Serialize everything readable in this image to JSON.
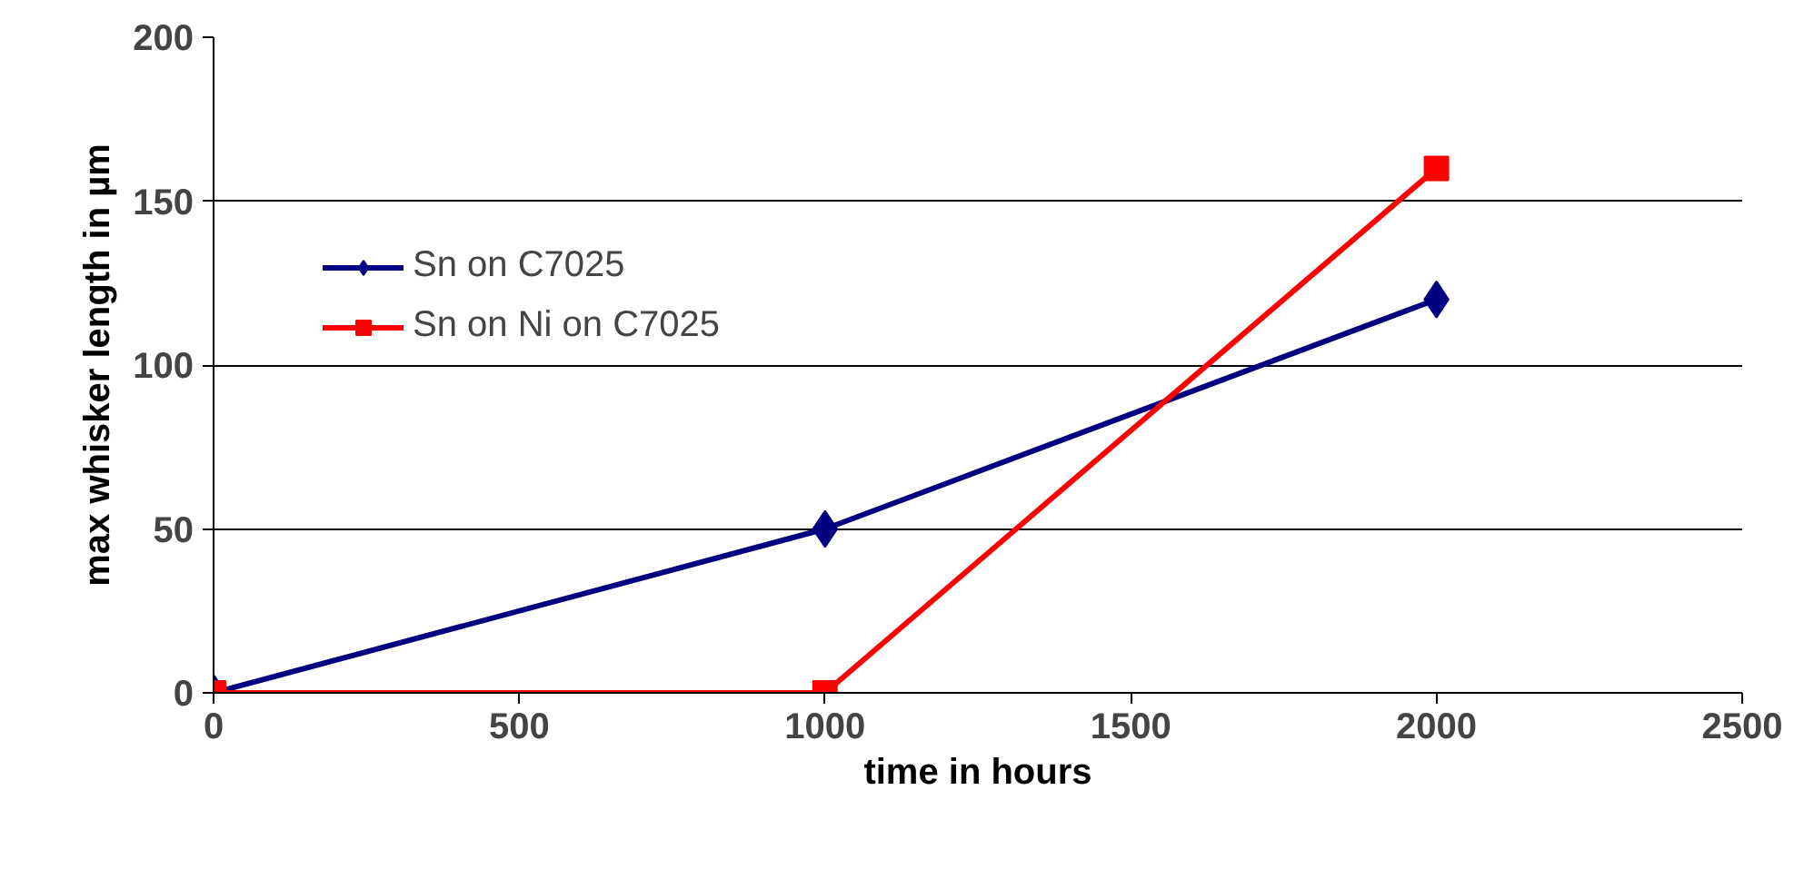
{
  "chart_data": {
    "type": "line",
    "xlabel": "time in hours",
    "ylabel": "max whisker length in µm",
    "xlim": [
      0,
      2500
    ],
    "ylim": [
      0,
      200
    ],
    "xticks": [
      0,
      500,
      1000,
      1500,
      2000,
      2500
    ],
    "yticks": [
      0,
      50,
      100,
      150,
      200
    ],
    "grid": "y",
    "legend": "top left",
    "line_style": "solid",
    "series": [
      {
        "name": "Sn on C7025",
        "color": "#000080",
        "marker": "diamond",
        "x": [
          0,
          1000,
          2000
        ],
        "values": [
          0,
          50,
          120
        ]
      },
      {
        "name": "Sn on Ni on C7025",
        "color": "#ff0000",
        "marker": "square",
        "x": [
          0,
          1000,
          2000
        ],
        "values": [
          0,
          0,
          160
        ]
      }
    ]
  }
}
